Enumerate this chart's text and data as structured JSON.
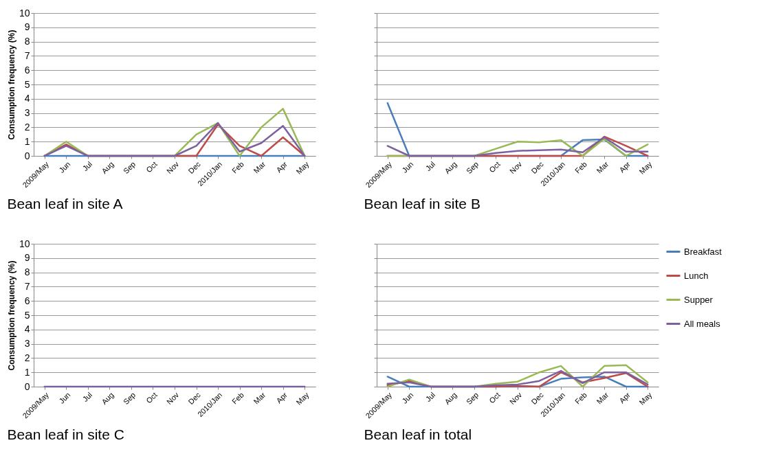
{
  "chart_data": [
    {
      "type": "line",
      "title": "Bean leaf in site A",
      "ylabel": "Consumption frequency (%)",
      "categories": [
        "2009/May",
        "Jun",
        "Jul",
        "Aug",
        "Sep",
        "Oct",
        "Nov",
        "Dec",
        "2010/Jan",
        "Feb",
        "Mar",
        "Apr",
        "May"
      ],
      "ylim": [
        0,
        10
      ],
      "yticks": [
        0,
        1,
        2,
        3,
        4,
        5,
        6,
        7,
        8,
        9,
        10
      ],
      "grid": "y",
      "series": [
        {
          "color": "#4a7ebb",
          "values": [
            0,
            0,
            0,
            0,
            0,
            0,
            0,
            0,
            0,
            0,
            0,
            0,
            0
          ]
        },
        {
          "color": "#be4b48",
          "values": [
            0,
            0.8,
            0,
            0,
            0,
            0,
            0,
            0,
            2.2,
            0.7,
            0,
            1.3,
            0
          ]
        },
        {
          "color": "#98b954",
          "values": [
            0,
            1.0,
            0,
            0,
            0,
            0,
            0,
            1.5,
            2.3,
            0,
            2.0,
            3.3,
            0
          ]
        },
        {
          "color": "#7d60a0",
          "values": [
            0,
            0.7,
            0,
            0,
            0,
            0,
            0,
            0.7,
            2.3,
            0.3,
            0.9,
            2.1,
            0
          ]
        }
      ]
    },
    {
      "type": "line",
      "title": "Bean leaf in site B",
      "categories": [
        "2009/May",
        "Jun",
        "Jul",
        "Aug",
        "Sep",
        "Oct",
        "Nov",
        "Dec",
        "2010/Jan",
        "Feb",
        "Mar",
        "Apr",
        "May"
      ],
      "ylim": [
        0,
        10
      ],
      "yticks": [
        0,
        1,
        2,
        3,
        4,
        5,
        6,
        7,
        8,
        9,
        10
      ],
      "grid": "y",
      "tick_labels": "x",
      "series": [
        {
          "color": "#4a7ebb",
          "values": [
            3.7,
            0,
            0,
            0,
            0,
            0,
            0,
            0,
            0,
            1.1,
            1.15,
            0,
            0
          ]
        },
        {
          "color": "#be4b48",
          "values": [
            0,
            0,
            0,
            0,
            0,
            0,
            0,
            0,
            0,
            0,
            1.35,
            0.7,
            0
          ]
        },
        {
          "color": "#98b954",
          "values": [
            0,
            0,
            0,
            0,
            0,
            0.5,
            1.0,
            0.95,
            1.1,
            0,
            1.2,
            0,
            0.8
          ]
        },
        {
          "color": "#7d60a0",
          "values": [
            0.7,
            0,
            0,
            0,
            0,
            0.2,
            0.35,
            0.4,
            0.45,
            0.25,
            1.3,
            0.3,
            0.3
          ]
        }
      ]
    },
    {
      "type": "line",
      "title": "Bean leaf in site C",
      "ylabel": "Consumption frequency (%)",
      "categories": [
        "2009/May",
        "Jun",
        "Jul",
        "Aug",
        "Sep",
        "Oct",
        "Nov",
        "Dec",
        "2010/Jan",
        "Feb",
        "Mar",
        "Apr",
        "May"
      ],
      "ylim": [
        0,
        10
      ],
      "yticks": [
        0,
        1,
        2,
        3,
        4,
        5,
        6,
        7,
        8,
        9,
        10
      ],
      "grid": "y",
      "series": [
        {
          "color": "#7d60a0",
          "values": [
            0,
            0,
            0,
            0,
            0,
            0,
            0,
            0,
            0,
            0,
            0,
            0,
            0
          ]
        }
      ]
    },
    {
      "type": "line",
      "title": "Bean leaf in total",
      "categories": [
        "2009/May",
        "Jun",
        "Jul",
        "Aug",
        "Sep",
        "Oct",
        "Nov",
        "Dec",
        "2010/Jan",
        "Feb",
        "Mar",
        "Apr",
        "May"
      ],
      "ylim": [
        0,
        10
      ],
      "yticks": [
        0,
        1,
        2,
        3,
        4,
        5,
        6,
        7,
        8,
        9,
        10
      ],
      "grid": "y",
      "tick_labels": "x",
      "legend": "right",
      "series": [
        {
          "name": "Breakfast",
          "color": "#4a7ebb",
          "values": [
            0.7,
            0,
            0,
            0,
            0,
            0,
            0,
            0,
            0.55,
            0.65,
            0.7,
            0,
            0
          ]
        },
        {
          "name": "Lunch",
          "color": "#be4b48",
          "values": [
            0.1,
            0.4,
            0,
            0,
            0,
            0,
            0.05,
            0,
            1.0,
            0.3,
            0.6,
            0.95,
            0
          ]
        },
        {
          "name": "Supper",
          "color": "#98b954",
          "values": [
            0,
            0.5,
            0,
            0,
            0,
            0.2,
            0.35,
            1.0,
            1.45,
            0,
            1.45,
            1.5,
            0.3
          ]
        },
        {
          "name": "All meals",
          "color": "#7d60a0",
          "values": [
            0.2,
            0.3,
            0,
            0,
            0,
            0.1,
            0.15,
            0.4,
            1.1,
            0.25,
            1.0,
            1.0,
            0.15
          ]
        }
      ]
    }
  ]
}
